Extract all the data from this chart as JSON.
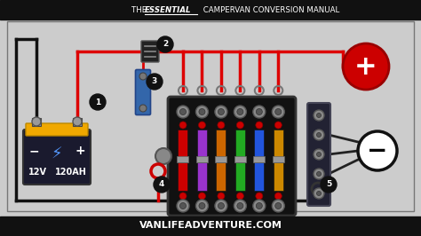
{
  "bg_color": "#cccccc",
  "header_color": "#111111",
  "footer_color": "#111111",
  "header_the": "THE ",
  "header_essential": "ESSENTIAL",
  "header_rest": " CAMPERVAN CONVERSION MANUAL",
  "footer_text": "VANLIFEADVENTURE.COM",
  "fuse_colors": [
    "#cc0000",
    "#9933cc",
    "#cc6600",
    "#22aa22",
    "#2255dd",
    "#cc8800"
  ],
  "label_numbers": [
    "1",
    "2",
    "3",
    "4",
    "5"
  ],
  "battery_color": "#f0a800",
  "battery_dark": "#1a1a2e",
  "battery_text1": "12V",
  "battery_text2": "120AH",
  "red_wire": "#dd0000",
  "black_wire": "#111111",
  "bolt_color": "#888888",
  "bolt_edge": "#555555",
  "pos_circle_color": "#cc0000",
  "neg_circle_bg": "#ffffff",
  "fuse_box_color": "#111111",
  "bus_bar_color": "#222233"
}
